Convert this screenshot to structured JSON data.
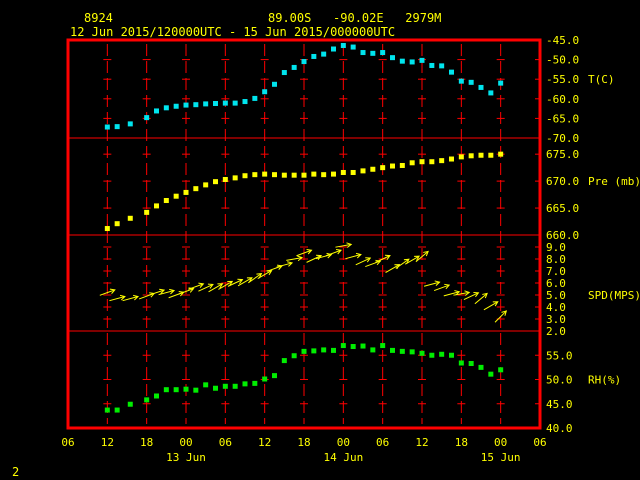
{
  "header": {
    "station": "8924",
    "location": "89.00S   -90.02E   2979M",
    "period": "12 Jun 2015/120000UTC - 15 Jun 2015/000000UTC"
  },
  "footer": {
    "page_number": "2"
  },
  "colors": {
    "background": "#000000",
    "frame": "#ff0000",
    "grid": "#ff0000",
    "text": "#ffff00",
    "temperature": "#00e5ee",
    "pressure": "#ffff00",
    "wind": "#ffff00",
    "humidity": "#00ee00"
  },
  "chart_data": {
    "type": "meteogram",
    "x_axis": {
      "unit": "hours since 12 Jun 2015 00UTC",
      "range": [
        54,
        126
      ],
      "tick_labels": [
        "06",
        "12",
        "18",
        "00",
        "06",
        "12",
        "18",
        "00",
        "06",
        "12",
        "18",
        "00",
        "06"
      ],
      "tick_hours": [
        54,
        60,
        66,
        72,
        78,
        84,
        90,
        96,
        102,
        108,
        114,
        120,
        126
      ],
      "date_labels": [
        {
          "label": "13 Jun",
          "hour": 72
        },
        {
          "label": "14 Jun",
          "hour": 96
        },
        {
          "label": "15 Jun",
          "hour": 120
        }
      ]
    },
    "panels": [
      {
        "key": "temperature",
        "type": "scatter",
        "label": "T(C)",
        "ylim": [
          -70,
          -45
        ],
        "ticks": [
          "-45.0",
          "-50.0",
          "-55.0",
          "-60.0",
          "-65.0",
          "-70.0"
        ],
        "tick_values": [
          -45,
          -50,
          -55,
          -60,
          -65,
          -70
        ],
        "x": [
          60,
          61.5,
          63.5,
          66,
          67.5,
          69,
          70.5,
          72,
          73.5,
          75,
          76.5,
          78,
          79.5,
          81,
          82.5,
          84,
          85.5,
          87,
          88.5,
          90,
          91.5,
          93,
          94.5,
          96,
          97.5,
          99,
          100.5,
          102,
          103.5,
          105,
          106.5,
          108,
          109.5,
          111,
          112.5,
          114,
          115.5,
          117,
          118.5,
          120
        ],
        "values": [
          -67.2,
          -67.1,
          -66.4,
          -64.8,
          -63.1,
          -62.3,
          -61.9,
          -61.6,
          -61.5,
          -61.3,
          -61.2,
          -61.1,
          -61.1,
          -60.7,
          -59.9,
          -58.2,
          -56.3,
          -53.3,
          -52.0,
          -50.5,
          -49.2,
          -48.6,
          -47.3,
          -46.4,
          -46.8,
          -48.2,
          -48.4,
          -48.2,
          -49.5,
          -50.4,
          -50.6,
          -50.2,
          -51.5,
          -51.6,
          -53.2,
          -55.5,
          -55.8,
          -57.1,
          -58.5,
          -56.0
        ]
      },
      {
        "key": "pressure",
        "type": "scatter",
        "label": "Pre (mb)",
        "ylim": [
          660,
          678
        ],
        "ticks": [
          "675.0",
          "670.0",
          "665.0",
          "660.0"
        ],
        "tick_values": [
          675,
          670,
          665,
          660
        ],
        "x": [
          60,
          61.5,
          63.5,
          66,
          67.5,
          69,
          70.5,
          72,
          73.5,
          75,
          76.5,
          78,
          79.5,
          81,
          82.5,
          84,
          85.5,
          87,
          88.5,
          90,
          91.5,
          93,
          94.5,
          96,
          97.5,
          99,
          100.5,
          102,
          103.5,
          105,
          106.5,
          108,
          109.5,
          111,
          112.5,
          114,
          115.5,
          117,
          118.5,
          120
        ],
        "values": [
          661.2,
          662.1,
          663.1,
          664.2,
          665.4,
          666.4,
          667.2,
          667.9,
          668.6,
          669.3,
          669.9,
          670.3,
          670.6,
          671.0,
          671.2,
          671.3,
          671.2,
          671.1,
          671.1,
          671.1,
          671.3,
          671.2,
          671.3,
          671.6,
          671.6,
          671.9,
          672.2,
          672.5,
          672.8,
          672.9,
          673.4,
          673.6,
          673.6,
          673.8,
          674.1,
          674.5,
          674.7,
          674.8,
          674.8,
          675.0
        ]
      },
      {
        "key": "wind",
        "type": "vector",
        "label": "SPD(MPS)",
        "ylim": [
          2,
          10
        ],
        "ticks": [
          "9.0",
          "8.0",
          "7.0",
          "6.0",
          "5.0",
          "4.0",
          "3.0",
          "2.0"
        ],
        "tick_values": [
          9,
          8,
          7,
          6,
          5,
          4,
          3,
          2
        ],
        "x": [
          60,
          61.5,
          63.5,
          66,
          67.5,
          69,
          70.5,
          72,
          73.5,
          75,
          76.5,
          78,
          79.5,
          81,
          82.5,
          84,
          85.5,
          87,
          88.5,
          90,
          91.5,
          93,
          94.5,
          96,
          97.5,
          99,
          100.5,
          102,
          103.5,
          105,
          106.5,
          108,
          109.5,
          111,
          112.5,
          114,
          115.5,
          117,
          118.5,
          120
        ],
        "values": [
          5.2,
          4.7,
          4.7,
          4.9,
          5.2,
          5.2,
          5.0,
          5.3,
          5.7,
          5.6,
          5.6,
          5.8,
          6.0,
          6.1,
          6.4,
          6.7,
          7.2,
          7.5,
          8.0,
          8.5,
          8.0,
          8.2,
          8.5,
          9.1,
          8.2,
          7.8,
          7.6,
          8.0,
          7.2,
          7.6,
          7.9,
          8.2,
          5.9,
          5.6,
          5.1,
          5.1,
          4.9,
          4.7,
          4.1,
          3.2
        ],
        "direction_deg": [
          20,
          15,
          15,
          20,
          18,
          15,
          20,
          20,
          20,
          25,
          30,
          30,
          25,
          30,
          35,
          30,
          20,
          15,
          10,
          20,
          25,
          15,
          20,
          10,
          15,
          25,
          20,
          25,
          30,
          35,
          30,
          40,
          15,
          20,
          15,
          10,
          25,
          40,
          30,
          45
        ]
      },
      {
        "key": "humidity",
        "type": "scatter",
        "label": "RH(%)",
        "ylim": [
          40,
          60
        ],
        "ticks": [
          "55.0",
          "50.0",
          "45.0",
          "40.0"
        ],
        "tick_values": [
          55,
          50,
          45,
          40
        ],
        "x": [
          60,
          61.5,
          63.5,
          66,
          67.5,
          69,
          70.5,
          72,
          73.5,
          75,
          76.5,
          78,
          79.5,
          81,
          82.5,
          84,
          85.5,
          87,
          88.5,
          90,
          91.5,
          93,
          94.5,
          96,
          97.5,
          99,
          100.5,
          102,
          103.5,
          105,
          106.5,
          108,
          109.5,
          111,
          112.5,
          114,
          115.5,
          117,
          118.5,
          120
        ],
        "values": [
          43.7,
          43.7,
          44.9,
          45.8,
          46.6,
          47.9,
          47.9,
          48.0,
          47.8,
          48.9,
          48.2,
          48.6,
          48.6,
          49.1,
          49.2,
          50.1,
          50.8,
          53.9,
          54.9,
          55.8,
          55.9,
          56.1,
          56.0,
          57.0,
          56.8,
          56.9,
          56.1,
          57.0,
          56.0,
          55.8,
          55.7,
          55.4,
          55.0,
          55.2,
          55.0,
          53.4,
          53.3,
          52.5,
          51.1,
          52.0
        ]
      }
    ]
  }
}
